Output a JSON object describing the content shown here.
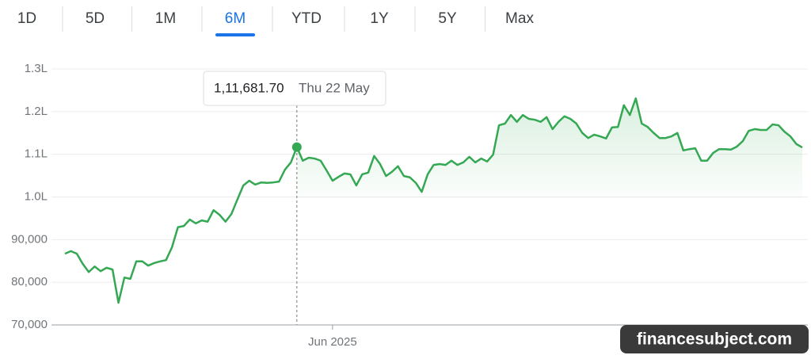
{
  "tabs": [
    "1D",
    "5D",
    "1M",
    "6M",
    "YTD",
    "1Y",
    "5Y",
    "Max"
  ],
  "active_tab": "6M",
  "watermark": "financesubject.com",
  "chart_data": {
    "type": "line",
    "tooltip_date": "Thu 22 May",
    "categories": [
      null,
      null,
      null,
      null,
      null,
      null,
      null,
      null,
      null,
      null,
      null,
      null,
      null,
      null,
      null,
      null,
      null,
      null,
      null,
      null,
      null,
      null,
      null,
      null,
      null,
      null,
      null,
      null,
      null,
      null,
      null,
      null,
      null,
      null,
      null,
      null,
      null,
      null,
      null,
      null,
      null,
      null,
      null,
      null,
      null,
      "Jun 2025",
      null,
      null,
      null,
      null,
      null,
      null,
      null,
      null,
      null,
      null,
      null,
      null,
      null,
      null,
      null,
      null,
      null,
      null,
      null,
      null,
      null,
      null,
      null,
      null,
      null,
      null,
      null,
      null,
      null,
      null,
      null,
      null,
      null,
      null,
      null,
      null,
      null,
      null,
      null,
      null,
      null,
      null,
      null,
      null,
      null,
      null,
      null,
      null,
      null,
      null,
      null,
      null,
      null,
      null,
      null,
      null,
      null,
      null,
      null,
      null,
      null,
      null,
      null,
      null,
      null,
      null,
      null,
      null,
      null,
      null,
      null,
      null,
      null,
      null,
      null,
      null,
      null,
      null,
      null
    ],
    "values": [
      86700,
      87300,
      86700,
      84300,
      82400,
      83700,
      82600,
      83400,
      83000,
      75200,
      81100,
      80800,
      84900,
      84900,
      83900,
      84500,
      84900,
      85200,
      88200,
      92900,
      93200,
      94700,
      93800,
      94500,
      94200,
      96900,
      95800,
      94200,
      96000,
      99400,
      102700,
      103800,
      102900,
      103400,
      103300,
      103400,
      103600,
      106400,
      108100,
      111681.7,
      108500,
      109200,
      109000,
      108500,
      106200,
      103800,
      104700,
      105500,
      105300,
      102700,
      105300,
      105700,
      109600,
      107700,
      104900,
      105900,
      107200,
      104900,
      104600,
      103300,
      101200,
      105300,
      107500,
      107700,
      107500,
      108500,
      107500,
      108100,
      109400,
      108100,
      109000,
      108300,
      109900,
      116800,
      117200,
      119200,
      117600,
      119200,
      118300,
      118100,
      117600,
      118700,
      115900,
      117600,
      118900,
      118300,
      117200,
      115000,
      113800,
      114600,
      114200,
      113700,
      116300,
      116400,
      121500,
      119200,
      123100,
      117200,
      116400,
      115000,
      113800,
      113800,
      114200,
      115000,
      110900,
      111200,
      111400,
      108500,
      108500,
      110300,
      111200,
      111200,
      111100,
      111800,
      113100,
      115500,
      115900,
      115700,
      115700,
      117000,
      116800,
      115300,
      114200,
      112400,
      111600
    ],
    "value_labels": [
      null,
      null,
      null,
      null,
      null,
      null,
      null,
      null,
      null,
      null,
      null,
      null,
      null,
      null,
      null,
      null,
      null,
      null,
      null,
      null,
      null,
      null,
      null,
      null,
      null,
      null,
      null,
      null,
      null,
      null,
      null,
      null,
      null,
      null,
      null,
      null,
      null,
      null,
      null,
      "1,11,681.70",
      null,
      null,
      null,
      null,
      null,
      null,
      null,
      null,
      null,
      null,
      null,
      null,
      null,
      null,
      null,
      null,
      null,
      null,
      null,
      null,
      null,
      null,
      null,
      null,
      null,
      null,
      null,
      null,
      null,
      null,
      null,
      null,
      null,
      null,
      null,
      null,
      null,
      null,
      null,
      null,
      null,
      null,
      null,
      null,
      null,
      null,
      null,
      null,
      null,
      null,
      null,
      null,
      null,
      null,
      null,
      null,
      null,
      null,
      null,
      null,
      null,
      null,
      null,
      null,
      null,
      null,
      null,
      null,
      null,
      null,
      null,
      null,
      null,
      null,
      null,
      null,
      null,
      null,
      null,
      null,
      null,
      null,
      null,
      null,
      null
    ],
    "color": "#34a853",
    "ylim": [
      70000,
      130000
    ],
    "yticks": [
      {
        "value": 70000,
        "label": "70,000"
      },
      {
        "value": 80000,
        "label": "80,000"
      },
      {
        "value": 90000,
        "label": "90,000"
      },
      {
        "value": 100000,
        "label": "1.0L"
      },
      {
        "value": 110000,
        "label": "1.1L"
      },
      {
        "value": 120000,
        "label": "1.2L"
      },
      {
        "value": 130000,
        "label": "1.3L"
      }
    ],
    "grid": true
  }
}
